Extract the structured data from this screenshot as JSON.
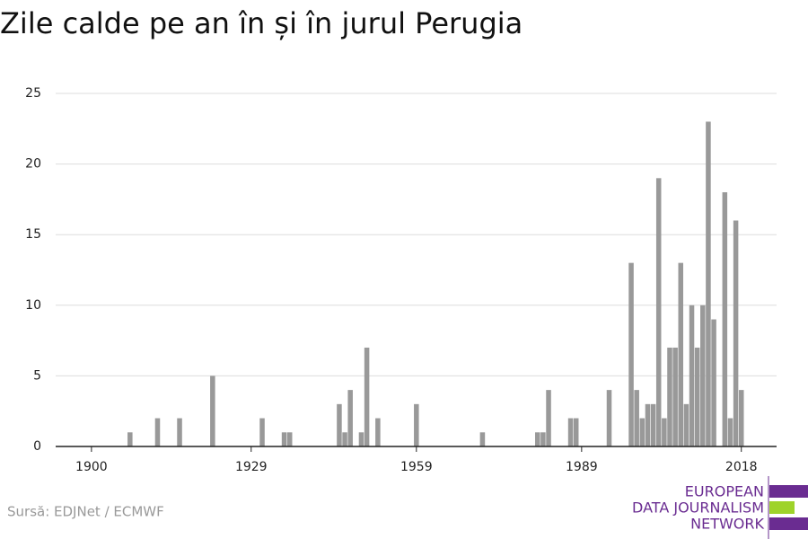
{
  "chart_data": {
    "type": "bar",
    "title": "Zile calde pe an în și în jurul Perugia",
    "source": "Sursă: EDJNet / ECMWF",
    "logo": [
      "EUROPEAN",
      "DATA JOURNALISM",
      "NETWORK"
    ],
    "x": [
      1907,
      1912,
      1916,
      1922,
      1931,
      1935,
      1936,
      1945,
      1946,
      1947,
      1949,
      1950,
      1952,
      1959,
      1971,
      1981,
      1982,
      1983,
      1987,
      1988,
      1994,
      1998,
      1999,
      2000,
      2001,
      2002,
      2003,
      2004,
      2005,
      2006,
      2007,
      2008,
      2009,
      2010,
      2011,
      2012,
      2013,
      2015,
      2016,
      2017,
      2018
    ],
    "values": [
      1,
      2,
      2,
      5,
      2,
      1,
      1,
      3,
      1,
      4,
      1,
      7,
      2,
      3,
      1,
      1,
      1,
      4,
      2,
      2,
      4,
      13,
      4,
      2,
      3,
      3,
      19,
      2,
      7,
      7,
      13,
      3,
      10,
      7,
      10,
      23,
      9,
      18,
      2,
      16,
      4
    ],
    "color": "#999999",
    "xlim": [
      1893.5,
      2024.4
    ],
    "xticks": [
      1900,
      1929,
      1959,
      1989,
      2018
    ],
    "ylim": [
      0,
      25
    ],
    "yticks": [
      0,
      5,
      10,
      15,
      20,
      25
    ],
    "grid": true
  }
}
